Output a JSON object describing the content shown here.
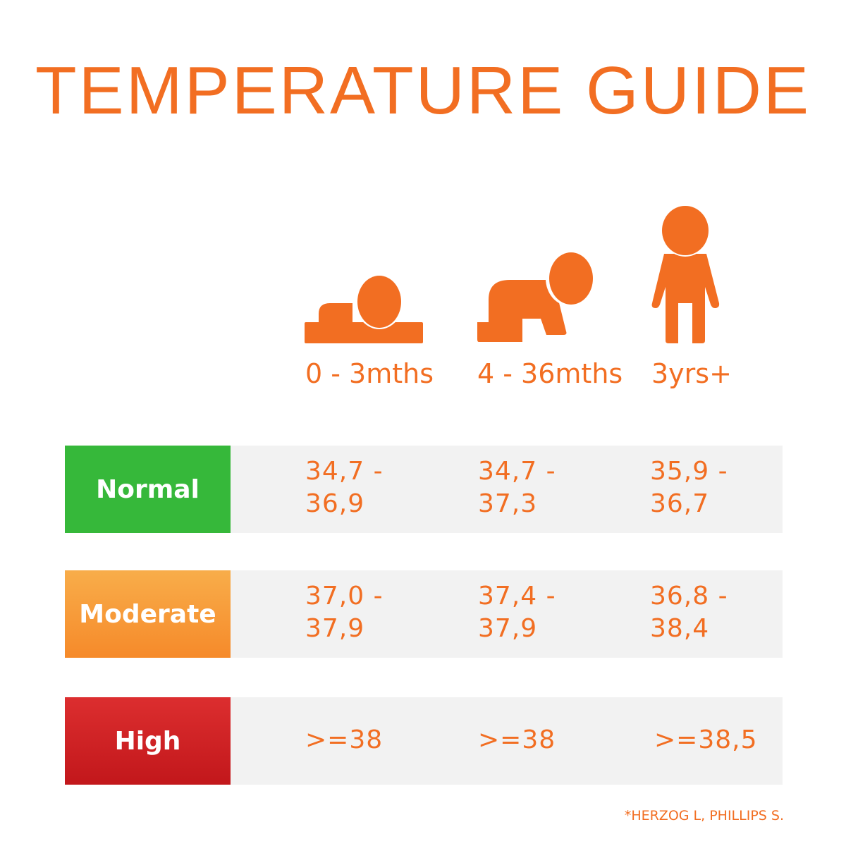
{
  "title": "TEMPERATURE GUIDE",
  "accent_color": "#F26E22",
  "age_groups": [
    {
      "label": "0 - 3mths",
      "icon": "lying-baby-icon"
    },
    {
      "label": "4 - 36mths",
      "icon": "crawling-baby-icon"
    },
    {
      "label": "3yrs+",
      "icon": "standing-child-icon"
    }
  ],
  "rows": [
    {
      "label": "Normal",
      "color": "#36b83a",
      "values": [
        [
          "34,7 -",
          "36,9"
        ],
        [
          "34,7 -",
          "37,3"
        ],
        [
          "35,9 -",
          "36,7"
        ]
      ]
    },
    {
      "label": "Moderate",
      "color": "#f7932f",
      "values": [
        [
          "37,0 -",
          "37,9"
        ],
        [
          "37,4 -",
          "37,9"
        ],
        [
          "36,8 -",
          "38,4"
        ]
      ]
    },
    {
      "label": "High",
      "color": "#d22226",
      "values": [
        [
          ">=38"
        ],
        [
          ">=38"
        ],
        [
          ">=38,5"
        ]
      ]
    }
  ],
  "reference": "*HERZOG L, PHILLIPS S."
}
